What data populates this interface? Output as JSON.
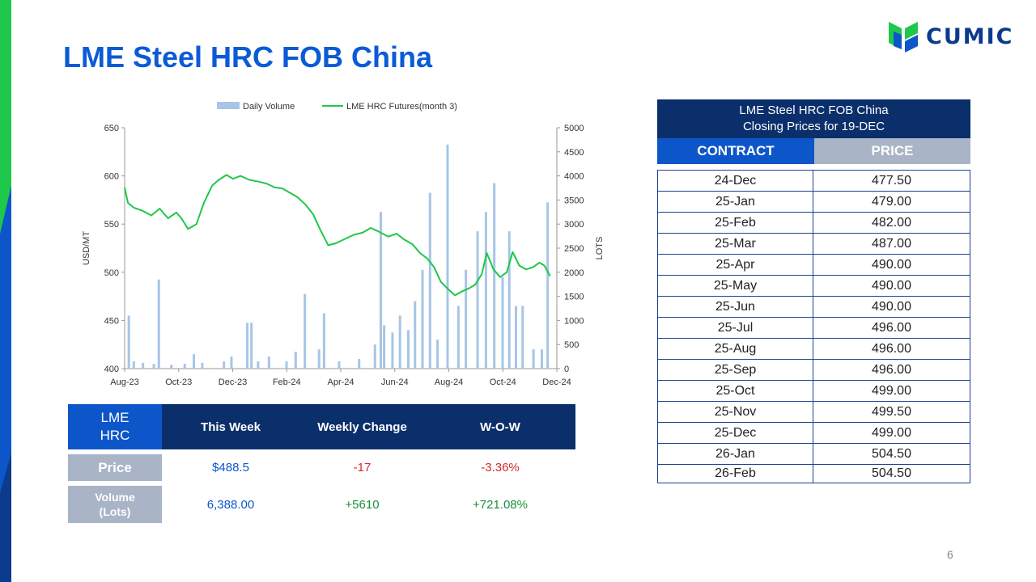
{
  "title": "LME Steel HRC FOB China",
  "logo": {
    "text": "CUMIC",
    "icon": "cumic-logo-icon"
  },
  "colors": {
    "title": "#0a5bd6",
    "navy": "#0b2f6b",
    "blue": "#0d56c9",
    "grey": "#a9b4c7",
    "green": "#1ec84a",
    "bar": "#a7c5e6",
    "negative": "#d12b2b",
    "positive": "#1a8f3a",
    "value_blue": "#0d56c9"
  },
  "chart_data": {
    "type": "line+bar",
    "legend": [
      "Daily Volume",
      "LME HRC Futures(month 3)"
    ],
    "legend_position": "top",
    "ylabel_left": "USD/MT",
    "ylabel_right": "LOTS",
    "y_left": {
      "min": 400,
      "max": 650,
      "ticks": [
        "650",
        "600",
        "550",
        "500",
        "450",
        "400"
      ]
    },
    "y_right": {
      "min": 0,
      "max": 5000,
      "ticks": [
        "5000",
        "4500",
        "4000",
        "3500",
        "3000",
        "2500",
        "2000",
        "1500",
        "1000",
        "500",
        "0"
      ]
    },
    "x_ticks": [
      "Aug-23",
      "Oct-23",
      "Dec-23",
      "Feb-24",
      "Apr-24",
      "Jun-24",
      "Aug-24",
      "Oct-24",
      "Dec-24"
    ],
    "x_range": [
      "2023-08-01",
      "2024-12-31"
    ],
    "series": [
      {
        "name": "LME HRC Futures(month 3)",
        "kind": "line",
        "axis": "left",
        "points": [
          [
            "2023-08-01",
            588
          ],
          [
            "2023-08-05",
            572
          ],
          [
            "2023-08-12",
            567
          ],
          [
            "2023-08-22",
            564
          ],
          [
            "2023-09-02",
            559
          ],
          [
            "2023-09-12",
            566
          ],
          [
            "2023-09-22",
            556
          ],
          [
            "2023-10-02",
            562
          ],
          [
            "2023-10-08",
            556
          ],
          [
            "2023-10-16",
            545
          ],
          [
            "2023-10-26",
            550
          ],
          [
            "2023-11-04",
            572
          ],
          [
            "2023-11-14",
            590
          ],
          [
            "2023-11-22",
            596
          ],
          [
            "2023-12-01",
            601
          ],
          [
            "2023-12-09",
            597
          ],
          [
            "2023-12-18",
            600
          ],
          [
            "2023-12-28",
            596
          ],
          [
            "2024-01-09",
            594
          ],
          [
            "2024-01-18",
            592
          ],
          [
            "2024-01-28",
            588
          ],
          [
            "2024-02-06",
            587
          ],
          [
            "2024-02-14",
            583
          ],
          [
            "2024-02-24",
            578
          ],
          [
            "2024-03-05",
            570
          ],
          [
            "2024-03-14",
            560
          ],
          [
            "2024-03-22",
            545
          ],
          [
            "2024-04-01",
            528
          ],
          [
            "2024-04-10",
            530
          ],
          [
            "2024-04-22",
            535
          ],
          [
            "2024-05-02",
            539
          ],
          [
            "2024-05-12",
            541
          ],
          [
            "2024-05-22",
            546
          ],
          [
            "2024-06-01",
            542
          ],
          [
            "2024-06-12",
            537
          ],
          [
            "2024-06-22",
            540
          ],
          [
            "2024-07-01",
            534
          ],
          [
            "2024-07-11",
            529
          ],
          [
            "2024-07-20",
            520
          ],
          [
            "2024-07-29",
            514
          ],
          [
            "2024-08-06",
            505
          ],
          [
            "2024-08-14",
            490
          ],
          [
            "2024-08-22",
            483
          ],
          [
            "2024-08-31",
            476
          ],
          [
            "2024-09-08",
            480
          ],
          [
            "2024-09-16",
            483
          ],
          [
            "2024-09-24",
            487
          ],
          [
            "2024-10-02",
            498
          ],
          [
            "2024-10-08",
            520
          ],
          [
            "2024-10-16",
            503
          ],
          [
            "2024-10-24",
            495
          ],
          [
            "2024-11-01",
            500
          ],
          [
            "2024-11-08",
            521
          ],
          [
            "2024-11-16",
            507
          ],
          [
            "2024-11-24",
            503
          ],
          [
            "2024-12-02",
            505
          ],
          [
            "2024-12-10",
            510
          ],
          [
            "2024-12-16",
            507
          ],
          [
            "2024-12-23",
            496
          ]
        ]
      },
      {
        "name": "Daily Volume",
        "kind": "bar",
        "axis": "right",
        "points": [
          [
            "2023-08-06",
            1100
          ],
          [
            "2023-08-12",
            150
          ],
          [
            "2023-08-23",
            120
          ],
          [
            "2023-09-05",
            100
          ],
          [
            "2023-09-11",
            1850
          ],
          [
            "2023-09-26",
            80
          ],
          [
            "2023-10-12",
            100
          ],
          [
            "2023-10-23",
            300
          ],
          [
            "2023-11-02",
            120
          ],
          [
            "2023-11-28",
            150
          ],
          [
            "2023-12-07",
            250
          ],
          [
            "2023-12-26",
            950
          ],
          [
            "2023-12-31",
            950
          ],
          [
            "2024-01-08",
            150
          ],
          [
            "2024-01-21",
            250
          ],
          [
            "2024-02-11",
            150
          ],
          [
            "2024-02-22",
            350
          ],
          [
            "2024-03-04",
            1550
          ],
          [
            "2024-03-21",
            400
          ],
          [
            "2024-03-27",
            1150
          ],
          [
            "2024-04-14",
            150
          ],
          [
            "2024-05-08",
            200
          ],
          [
            "2024-05-27",
            500
          ],
          [
            "2024-06-03",
            3250
          ],
          [
            "2024-06-07",
            900
          ],
          [
            "2024-06-17",
            750
          ],
          [
            "2024-06-26",
            1100
          ],
          [
            "2024-07-06",
            800
          ],
          [
            "2024-07-14",
            1400
          ],
          [
            "2024-07-23",
            2050
          ],
          [
            "2024-08-01",
            3650
          ],
          [
            "2024-08-10",
            600
          ],
          [
            "2024-08-22",
            4650
          ],
          [
            "2024-09-04",
            1300
          ],
          [
            "2024-09-13",
            2050
          ],
          [
            "2024-09-27",
            2850
          ],
          [
            "2024-10-07",
            3250
          ],
          [
            "2024-10-17",
            3850
          ],
          [
            "2024-10-27",
            1900
          ],
          [
            "2024-11-04",
            2850
          ],
          [
            "2024-11-12",
            1300
          ],
          [
            "2024-11-20",
            1300
          ],
          [
            "2024-12-03",
            400
          ],
          [
            "2024-12-13",
            400
          ],
          [
            "2024-12-20",
            3450
          ]
        ]
      }
    ]
  },
  "summary": {
    "corner_label": [
      "LME",
      "HRC"
    ],
    "headers": [
      "This Week",
      "Weekly Change",
      "W-O-W"
    ],
    "price": {
      "label": "Price",
      "this_week": "$488.5",
      "change": "-17",
      "wow": "-3.36%"
    },
    "volume": {
      "label": [
        "Volume",
        "(Lots)"
      ],
      "this_week": "6,388.00",
      "change": "+5610",
      "wow": "+721.08%"
    }
  },
  "prices": {
    "title_lines": [
      "LME Steel HRC FOB China",
      "Closing Prices for 19-DEC"
    ],
    "col_contract": "CONTRACT",
    "col_price": "PRICE",
    "rows": [
      {
        "contract": "24-Dec",
        "price": "477.50"
      },
      {
        "contract": "25-Jan",
        "price": "479.00"
      },
      {
        "contract": "25-Feb",
        "price": "482.00"
      },
      {
        "contract": "25-Mar",
        "price": "487.00"
      },
      {
        "contract": "25-Apr",
        "price": "490.00"
      },
      {
        "contract": "25-May",
        "price": "490.00"
      },
      {
        "contract": "25-Jun",
        "price": "490.00"
      },
      {
        "contract": "25-Jul",
        "price": "496.00"
      },
      {
        "contract": "25-Aug",
        "price": "496.00"
      },
      {
        "contract": "25-Sep",
        "price": "496.00"
      },
      {
        "contract": "25-Oct",
        "price": "499.00"
      },
      {
        "contract": "25-Nov",
        "price": "499.50"
      },
      {
        "contract": "25-Dec",
        "price": "499.00"
      },
      {
        "contract": "26-Jan",
        "price": "504.50"
      },
      {
        "contract": "26-Feb",
        "price": "504.50"
      }
    ]
  },
  "page_number": "6"
}
